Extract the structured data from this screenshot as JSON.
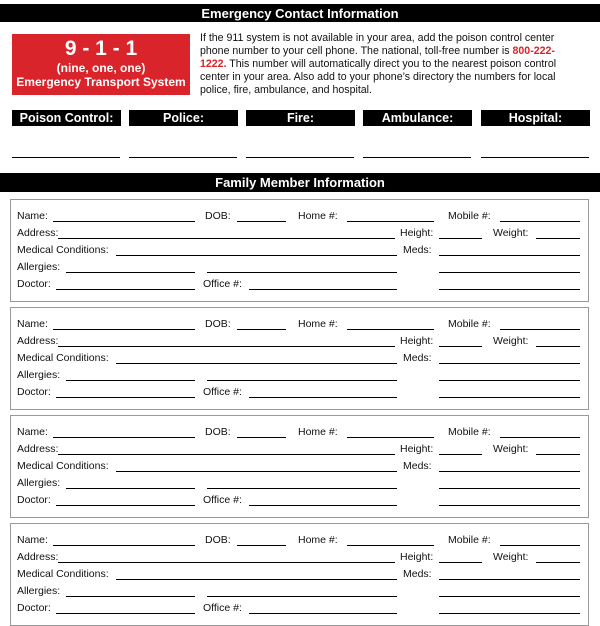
{
  "header": {
    "title": "Emergency Contact Information"
  },
  "emergency_box": {
    "number": "9 - 1 - 1",
    "spelled": "(nine, one, one)",
    "system": "Emergency Transport System"
  },
  "intro": {
    "before": "If the 911 system is not available in your area, add the poison control center phone number to your cell phone. The national, toll-free number is ",
    "phone": "800-222-1222.",
    "after": " This number will automatically direct you to the nearest poison control center in your area. Also add to your phone’s directory the numbers for local police, fire, ambulance, and hospital."
  },
  "contacts": [
    "Poison Control:",
    "Police:",
    "Fire:",
    "Ambulance:",
    "Hospital:"
  ],
  "family": {
    "title": "Family Member Information",
    "field_labels": {
      "name": "Name:",
      "dob": "DOB:",
      "home": "Home #:",
      "mobile": "Mobile #:",
      "address": "Address:",
      "height": "Height:",
      "weight": "Weight:",
      "medical": "Medical Conditions:",
      "meds": "Meds:",
      "allergies": "Allergies:",
      "doctor": "Doctor:",
      "office": "Office #:"
    },
    "card_count": 4
  },
  "colors": {
    "accent": "#d9242b",
    "bar": "#000000"
  }
}
